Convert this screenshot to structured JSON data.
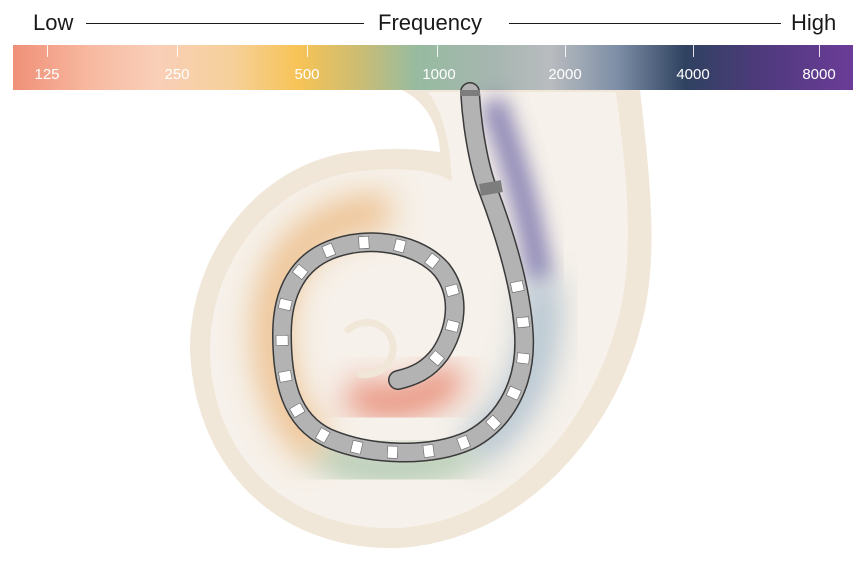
{
  "header": {
    "low_label": "Low",
    "title": "Frequency",
    "high_label": "High"
  },
  "frequency_scale": {
    "ticks": [
      "125",
      "250",
      "500",
      "1000",
      "2000",
      "4000",
      "8000"
    ]
  },
  "diagram": {
    "electrode_count": 22,
    "colors": {
      "cochlea_tissue": "#f1e7d9",
      "cochlea_interior": "#f6f1ea",
      "electrode_array": "#b3b3b3",
      "electrode_outline": "#3a3a3a",
      "contact": "#ffffff",
      "low_frequency_zone": "#e46e55",
      "mid_frequency_zone": "#98bc9c",
      "high_frequency_zone": "#6a63a4"
    }
  }
}
